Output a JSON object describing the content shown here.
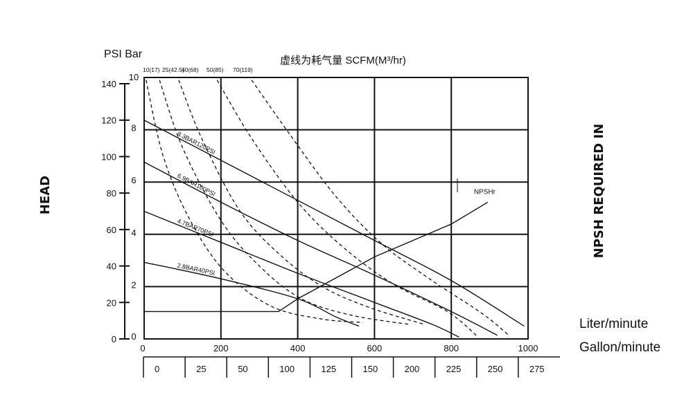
{
  "chart_data": {
    "type": "line",
    "title": "虚线为耗气量  SCFM(M³/hr)",
    "left_axis": {
      "label": "HEAD",
      "units_label": "PSI Bar",
      "psi_ticks": [
        "0",
        "20",
        "40",
        "60",
        "80",
        "100",
        "120",
        "140"
      ],
      "bar_ticks": [
        "0",
        "2",
        "4",
        "6",
        "8",
        "10"
      ],
      "psi_range": [
        0,
        140
      ],
      "bar_range": [
        0,
        10
      ]
    },
    "right_axis_label": "NPSH REQUIRED IN",
    "x_axis": {
      "liter_label": "Liter/minute",
      "gallon_label": "Gallon/minute",
      "liter_ticks": [
        "0",
        "200",
        "400",
        "600",
        "800",
        "1000"
      ],
      "liter_range": [
        0,
        1000
      ],
      "gallon_ticks": [
        "0",
        "25",
        "50",
        "100",
        "125",
        "150",
        "200",
        "225",
        "250",
        "275"
      ]
    },
    "grid": true,
    "air_labels": [
      "10(17)",
      "25(42.5)",
      "40(68)",
      "50(85)",
      "70(119)"
    ],
    "series": [
      {
        "name": "8.3BAR120PSI",
        "x": [
          0,
          200,
          400,
          600,
          800,
          990
        ],
        "y": [
          120,
          98,
          76,
          54,
          32,
          7
        ]
      },
      {
        "name": "6.9BAR100PSI",
        "x": [
          0,
          200,
          400,
          600,
          800,
          920
        ],
        "y": [
          97,
          75,
          54,
          35,
          15,
          2
        ]
      },
      {
        "name": "4.7BAR70PSI",
        "x": [
          0,
          200,
          400,
          600,
          750,
          820
        ],
        "y": [
          70,
          53,
          36,
          20,
          8,
          1
        ]
      },
      {
        "name": "2.8BAR40PSI",
        "x": [
          0,
          200,
          400,
          500,
          560
        ],
        "y": [
          42,
          33,
          22,
          12,
          7
        ]
      },
      {
        "name": "NPSHr",
        "x": [
          0,
          350,
          400,
          600,
          800,
          895
        ],
        "y": [
          15,
          15,
          22,
          45,
          63,
          75
        ]
      }
    ],
    "air_curves": [
      {
        "x": [
          5,
          50,
          120,
          210,
          330,
          460,
          570
        ],
        "y": [
          142,
          100,
          65,
          37,
          18,
          11,
          9
        ]
      },
      {
        "x": [
          40,
          100,
          200,
          300,
          410,
          540,
          690
        ],
        "y": [
          142,
          105,
          65,
          40,
          22,
          13,
          8
        ]
      },
      {
        "x": [
          90,
          150,
          250,
          360,
          470,
          590,
          730
        ],
        "y": [
          142,
          110,
          70,
          45,
          28,
          17,
          8
        ]
      },
      {
        "x": [
          190,
          280,
          400,
          520,
          650,
          790,
          870
        ],
        "y": [
          142,
          110,
          75,
          50,
          30,
          15,
          1
        ]
      },
      {
        "x": [
          280,
          380,
          500,
          620,
          750,
          880,
          950
        ],
        "y": [
          142,
          112,
          78,
          52,
          32,
          14,
          2
        ]
      }
    ]
  }
}
